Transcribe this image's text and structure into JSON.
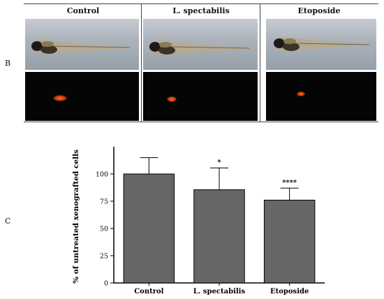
{
  "panel_b": {
    "letter": "B",
    "columns": [
      "Control",
      "L. spectabilis",
      "Etoposide"
    ]
  },
  "panel_c": {
    "letter": "C"
  },
  "chart_data": {
    "type": "bar",
    "categories": [
      "Control",
      "L. spectabilis",
      "Etoposide"
    ],
    "values": [
      100,
      85.5,
      76
    ],
    "error_upper": [
      15,
      20,
      11
    ],
    "significance": [
      "",
      "*",
      "****"
    ],
    "ylabel": "% of untreated  xenografted cells",
    "xlabel": "",
    "ylim": [
      0,
      125
    ],
    "yticks": [
      0,
      25,
      50,
      75,
      100
    ],
    "bar_color": "#666666",
    "grid": false
  }
}
